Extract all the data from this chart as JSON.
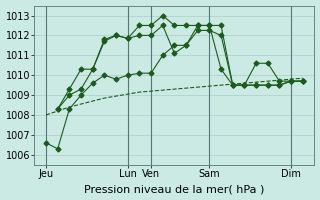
{
  "background_color": "#cceae4",
  "grid_color": "#aacccc",
  "line_color": "#1a5c1a",
  "xlabel": "Pression niveau de la mer( hPa )",
  "ylim": [
    1005.5,
    1013.5
  ],
  "yticks": [
    1006,
    1007,
    1008,
    1009,
    1010,
    1011,
    1012,
    1013
  ],
  "xlim": [
    0,
    24
  ],
  "xtick_labels": [
    "Jeu",
    "Lun",
    "Ven",
    "Sam",
    "Dim"
  ],
  "xtick_positions": [
    1,
    8,
    10,
    15,
    22
  ],
  "vline_positions": [
    1,
    8,
    10,
    15,
    22
  ],
  "series": [
    {
      "x": [
        1,
        2,
        3,
        4,
        5,
        6,
        7,
        8,
        9,
        10,
        11,
        12,
        13,
        14,
        15,
        16,
        17,
        18,
        19,
        20,
        21,
        22,
        23
      ],
      "y": [
        1006.6,
        1006.3,
        1008.3,
        1009.0,
        1009.6,
        1010.0,
        1009.8,
        1010.0,
        1010.1,
        1010.1,
        1011.0,
        1011.5,
        1011.5,
        1012.5,
        1012.5,
        1010.3,
        1009.5,
        1009.5,
        1010.6,
        1010.6,
        1009.7,
        1009.7,
        1009.7
      ],
      "style": "-",
      "marker": "D",
      "markersize": 2.5
    },
    {
      "x": [
        2,
        3,
        4,
        5,
        6,
        7,
        8,
        9,
        10,
        11,
        12,
        13,
        14,
        15,
        16,
        17,
        18,
        19,
        20,
        21,
        22,
        23
      ],
      "y": [
        1008.3,
        1009.0,
        1009.3,
        1010.3,
        1011.7,
        1012.0,
        1011.85,
        1012.0,
        1012.0,
        1012.5,
        1011.1,
        1011.5,
        1012.25,
        1012.25,
        1012.0,
        1009.5,
        1009.5,
        1009.5,
        1009.5,
        1009.5,
        1009.7,
        1009.7
      ],
      "style": "-",
      "marker": "D",
      "markersize": 2.5
    },
    {
      "x": [
        2,
        3,
        4,
        5,
        6,
        7,
        8,
        9,
        10,
        11,
        12,
        13,
        14,
        15,
        16,
        17,
        18,
        19,
        20,
        21,
        22,
        23
      ],
      "y": [
        1008.3,
        1009.3,
        1010.3,
        1010.3,
        1011.8,
        1012.0,
        1011.85,
        1012.5,
        1012.5,
        1013.0,
        1012.5,
        1012.5,
        1012.5,
        1012.5,
        1012.5,
        1009.5,
        1009.5,
        1009.5,
        1009.5,
        1009.5,
        1009.7,
        1009.7
      ],
      "style": "-",
      "marker": "D",
      "markersize": 2.5
    },
    {
      "x": [
        1,
        2,
        3,
        4,
        5,
        6,
        7,
        8,
        9,
        10,
        11,
        12,
        13,
        14,
        15,
        16,
        17,
        18,
        19,
        20,
        21,
        22,
        23
      ],
      "y": [
        1008.0,
        1008.2,
        1008.4,
        1008.55,
        1008.7,
        1008.85,
        1008.95,
        1009.05,
        1009.15,
        1009.2,
        1009.25,
        1009.3,
        1009.35,
        1009.4,
        1009.45,
        1009.5,
        1009.55,
        1009.6,
        1009.65,
        1009.7,
        1009.75,
        1009.8,
        1009.85
      ],
      "style": "--",
      "marker": "",
      "markersize": 0
    }
  ],
  "fontsize": 7,
  "ylabel_fontsize": 7
}
